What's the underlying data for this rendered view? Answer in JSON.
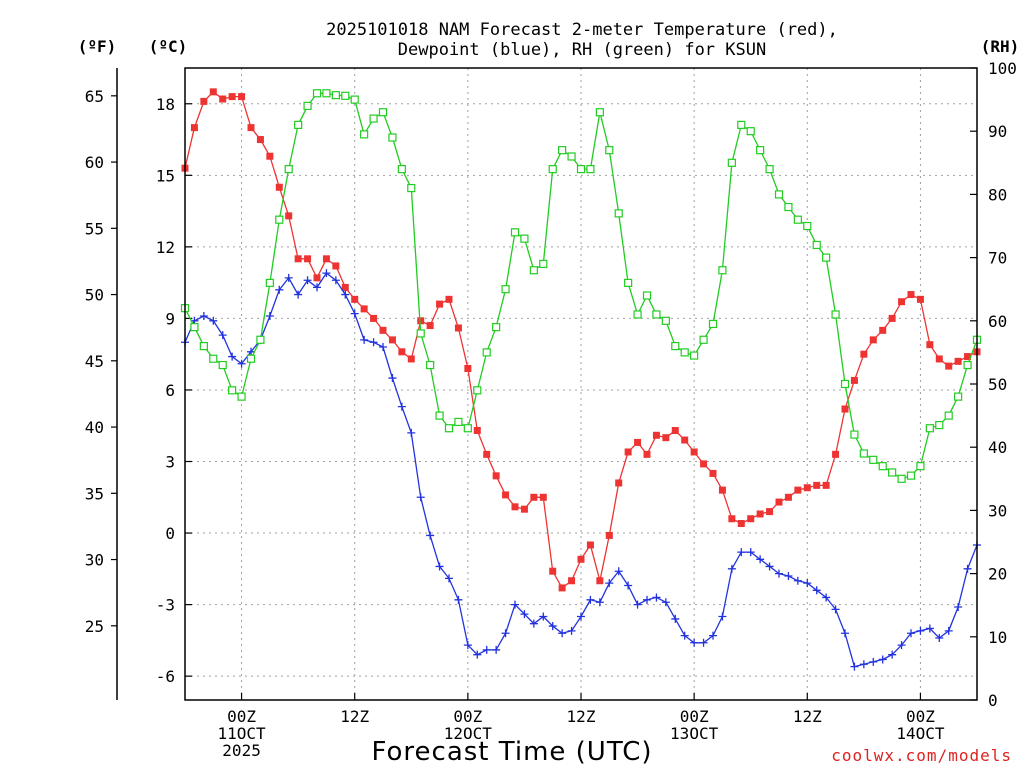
{
  "chart_data": {
    "type": "line",
    "title": [
      "2025101018 NAM Forecast 2-meter Temperature (red),",
      "Dewpoint (blue), RH (green) for KSUN"
    ],
    "xlabel": "Forecast Time (UTC)",
    "credit": "coolwx.com/models",
    "units": {
      "fahrenheit": "(ºF)",
      "celsius": "(ºC)",
      "rh": "(RH)"
    },
    "fahrenheit_ticks": [
      "65",
      "60",
      "55",
      "50",
      "45",
      "40",
      "35",
      "30",
      "25"
    ],
    "celsius_ticks": [
      "18",
      "15",
      "12",
      "9",
      "6",
      "3",
      "0",
      "-3",
      "-6"
    ],
    "rh_ticks": [
      "100",
      "90",
      "80",
      "70",
      "60",
      "50",
      "40",
      "30",
      "20",
      "10",
      "0"
    ],
    "x_ticks": [
      {
        "hour": 6,
        "lines": [
          "00Z",
          "11OCT",
          "2025"
        ]
      },
      {
        "hour": 18,
        "lines": [
          "12Z"
        ]
      },
      {
        "hour": 30,
        "lines": [
          "00Z",
          "12OCT"
        ]
      },
      {
        "hour": 42,
        "lines": [
          "12Z"
        ]
      },
      {
        "hour": 54,
        "lines": [
          "00Z",
          "13OCT"
        ]
      },
      {
        "hour": 66,
        "lines": [
          "12Z"
        ]
      },
      {
        "hour": 78,
        "lines": [
          "00Z",
          "14OCT"
        ]
      }
    ],
    "xlim": [
      0,
      84
    ],
    "ylim_celsius": [
      -7,
      19.5
    ],
    "ylim_rh": [
      0,
      100
    ],
    "colors": {
      "temperature": "#ee3333",
      "dewpoint": "#2233dd",
      "rh": "#22cc22"
    },
    "series": [
      {
        "name": "Temperature",
        "unit": "C",
        "x": [
          0,
          1,
          2,
          3,
          4,
          5,
          6,
          7,
          8,
          9,
          10,
          11,
          12,
          13,
          14,
          15,
          16,
          17,
          18,
          19,
          20,
          21,
          22,
          23,
          24,
          25,
          26,
          27,
          28,
          29,
          30,
          31,
          32,
          33,
          34,
          35,
          36,
          37,
          38,
          39,
          40,
          41,
          42,
          43,
          44,
          45,
          46,
          47,
          48,
          49,
          50,
          51,
          52,
          53,
          54,
          55,
          56,
          57,
          58,
          59,
          60,
          61,
          62,
          63,
          64,
          65,
          66,
          67,
          68,
          69,
          70,
          71,
          72,
          73,
          74,
          75,
          76,
          77,
          78,
          79,
          80,
          81,
          82,
          83,
          84
        ],
        "values": [
          15.3,
          17.0,
          18.1,
          18.5,
          18.2,
          18.3,
          18.3,
          17.0,
          16.5,
          15.8,
          14.5,
          13.3,
          11.5,
          11.5,
          10.7,
          11.5,
          11.2,
          10.3,
          9.8,
          9.4,
          9.0,
          8.5,
          8.1,
          7.6,
          7.3,
          8.9,
          8.7,
          9.6,
          9.8,
          8.6,
          6.9,
          4.3,
          3.3,
          2.4,
          1.6,
          1.1,
          1.0,
          1.5,
          1.5,
          -1.6,
          -2.3,
          -2.0,
          -1.1,
          -0.5,
          -2.0,
          -0.1,
          2.1,
          3.4,
          3.8,
          3.3,
          4.1,
          4.0,
          4.3,
          3.9,
          3.4,
          2.9,
          2.5,
          1.8,
          0.6,
          0.4,
          0.6,
          0.8,
          0.9,
          1.3,
          1.5,
          1.8,
          1.9,
          2.0,
          2.0,
          3.3,
          5.2,
          6.4,
          7.5,
          8.1,
          8.5,
          9.0,
          9.7,
          10.0,
          9.8,
          7.9,
          7.3,
          7.0,
          7.2,
          7.4,
          7.6
        ]
      },
      {
        "name": "Dewpoint",
        "unit": "C",
        "x": [
          0,
          1,
          2,
          3,
          4,
          5,
          6,
          7,
          8,
          9,
          10,
          11,
          12,
          13,
          14,
          15,
          16,
          17,
          18,
          19,
          20,
          21,
          22,
          23,
          24,
          25,
          26,
          27,
          28,
          29,
          30,
          31,
          32,
          33,
          34,
          35,
          36,
          37,
          38,
          39,
          40,
          41,
          42,
          43,
          44,
          45,
          46,
          47,
          48,
          49,
          50,
          51,
          52,
          53,
          54,
          55,
          56,
          57,
          58,
          59,
          60,
          61,
          62,
          63,
          64,
          65,
          66,
          67,
          68,
          69,
          70,
          71,
          72,
          73,
          74,
          75,
          76,
          77,
          78,
          79,
          80,
          81,
          82,
          83,
          84
        ],
        "values": [
          8.0,
          8.9,
          9.1,
          8.9,
          8.3,
          7.4,
          7.1,
          7.6,
          8.1,
          9.1,
          10.2,
          10.7,
          10.0,
          10.6,
          10.3,
          10.9,
          10.6,
          10.0,
          9.2,
          8.1,
          8.0,
          7.8,
          6.5,
          5.3,
          4.2,
          1.5,
          -0.1,
          -1.4,
          -1.9,
          -2.8,
          -4.7,
          -5.1,
          -4.9,
          -4.9,
          -4.2,
          -3.0,
          -3.4,
          -3.8,
          -3.5,
          -3.9,
          -4.2,
          -4.1,
          -3.5,
          -2.8,
          -2.9,
          -2.1,
          -1.6,
          -2.2,
          -3.0,
          -2.8,
          -2.7,
          -2.9,
          -3.6,
          -4.3,
          -4.6,
          -4.6,
          -4.3,
          -3.5,
          -1.5,
          -0.8,
          -0.8,
          -1.1,
          -1.4,
          -1.7,
          -1.8,
          -2.0,
          -2.1,
          -2.4,
          -2.7,
          -3.2,
          -4.2,
          -5.6,
          -5.5,
          -5.4,
          -5.3,
          -5.1,
          -4.7,
          -4.2,
          -4.1,
          -4.0,
          -4.4,
          -4.1,
          -3.1,
          -1.5,
          -0.5
        ]
      },
      {
        "name": "RH",
        "unit": "%",
        "x": [
          0,
          1,
          2,
          3,
          4,
          5,
          6,
          7,
          8,
          9,
          10,
          11,
          12,
          13,
          14,
          15,
          16,
          17,
          18,
          19,
          20,
          21,
          22,
          23,
          24,
          25,
          26,
          27,
          28,
          29,
          30,
          31,
          32,
          33,
          34,
          35,
          36,
          37,
          38,
          39,
          40,
          41,
          42,
          43,
          44,
          45,
          46,
          47,
          48,
          49,
          50,
          51,
          52,
          53,
          54,
          55,
          56,
          57,
          58,
          59,
          60,
          61,
          62,
          63,
          64,
          65,
          66,
          67,
          68,
          69,
          70,
          71,
          72,
          73,
          74,
          75,
          76,
          77,
          78,
          79,
          80,
          81,
          82,
          83,
          84
        ],
        "values": [
          62,
          59,
          56,
          54,
          53,
          49,
          48,
          54,
          57,
          66,
          76,
          84,
          91,
          94,
          96,
          96,
          95.7,
          95.6,
          95,
          89.5,
          92,
          93,
          89,
          84,
          81,
          58,
          53,
          45,
          43,
          44,
          43,
          49,
          55,
          59,
          65,
          74,
          73,
          68,
          69,
          84,
          87,
          86,
          84,
          84,
          93,
          87,
          77,
          66,
          61,
          64,
          61,
          60,
          56,
          55,
          54.5,
          57,
          59.5,
          68,
          85,
          91,
          90,
          87,
          84,
          80,
          78,
          76,
          75,
          72,
          70,
          61,
          50,
          42,
          39,
          38,
          37,
          36,
          35,
          35.5,
          37,
          43,
          43.5,
          45,
          48,
          53,
          57
        ]
      }
    ]
  }
}
